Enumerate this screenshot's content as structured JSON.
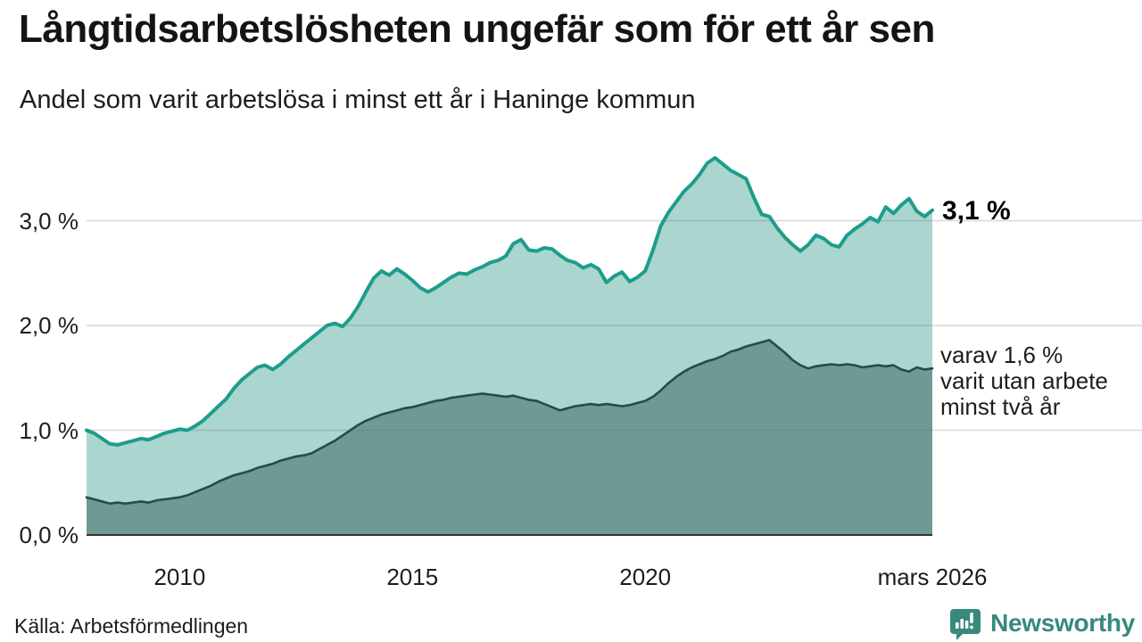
{
  "header": {
    "title": "Långtidsarbetslösheten ungefär som för ett år sen",
    "subtitle": "Andel som varit arbetslösa i minst ett år i Haninge kommun"
  },
  "chart_data": {
    "type": "area",
    "title": "Långtidsarbetslösheten ungefär som för ett år sen",
    "subtitle": "Andel som varit arbetslösa i minst ett år i Haninge kommun",
    "unit": "%",
    "x_start": 2008.0,
    "x_step_years": 0.16667,
    "x_end": 2026.167,
    "ylim": [
      0,
      3.75
    ],
    "grid": true,
    "legend_position": "none",
    "x_ticks": [
      {
        "label": "2010",
        "year": 2010
      },
      {
        "label": "2015",
        "year": 2015
      },
      {
        "label": "2020",
        "year": 2020
      },
      {
        "label": "mars 2026",
        "year": 2026.167
      }
    ],
    "y_ticks": [
      {
        "label": "0,0 %",
        "value": 0
      },
      {
        "label": "1,0 %",
        "value": 1
      },
      {
        "label": "2,0 %",
        "value": 2
      },
      {
        "label": "3,0 %",
        "value": 3
      }
    ],
    "series": [
      {
        "id": "minst-ett-ar",
        "name": "Andel som varit arbetslösa i minst ett år",
        "color": "#1d9d8c",
        "fill": "#abd5cf",
        "stroke_width": 4,
        "end_value_label": "3,1 %",
        "values": [
          1.0,
          0.97,
          0.92,
          0.87,
          0.86,
          0.88,
          0.9,
          0.92,
          0.91,
          0.94,
          0.97,
          0.99,
          1.01,
          1.0,
          1.04,
          1.09,
          1.16,
          1.23,
          1.3,
          1.4,
          1.48,
          1.54,
          1.6,
          1.62,
          1.58,
          1.63,
          1.7,
          1.76,
          1.82,
          1.88,
          1.94,
          2.0,
          2.02,
          1.99,
          2.07,
          2.18,
          2.32,
          2.45,
          2.52,
          2.48,
          2.54,
          2.49,
          2.43,
          2.36,
          2.32,
          2.36,
          2.41,
          2.46,
          2.5,
          2.49,
          2.53,
          2.56,
          2.6,
          2.62,
          2.66,
          2.78,
          2.82,
          2.72,
          2.71,
          2.74,
          2.73,
          2.67,
          2.62,
          2.6,
          2.55,
          2.58,
          2.54,
          2.41,
          2.47,
          2.51,
          2.42,
          2.46,
          2.52,
          2.72,
          2.95,
          3.08,
          3.18,
          3.28,
          3.35,
          3.44,
          3.55,
          3.6,
          3.54,
          3.48,
          3.44,
          3.4,
          3.22,
          3.06,
          3.04,
          2.93,
          2.84,
          2.77,
          2.71,
          2.77,
          2.86,
          2.83,
          2.77,
          2.75,
          2.86,
          2.92,
          2.97,
          3.03,
          2.99,
          3.13,
          3.07,
          3.15,
          3.21,
          3.09,
          3.04,
          3.1
        ]
      },
      {
        "id": "minst-tva-ar",
        "name": "varav utan arbete minst två år",
        "color": "#1e4f4a",
        "fill": "#6f9993",
        "stroke_width": 2.6,
        "end_value_label": "varav 1,6 %",
        "values": [
          0.36,
          0.34,
          0.32,
          0.3,
          0.31,
          0.3,
          0.31,
          0.32,
          0.31,
          0.33,
          0.34,
          0.35,
          0.36,
          0.38,
          0.41,
          0.44,
          0.47,
          0.51,
          0.54,
          0.57,
          0.59,
          0.61,
          0.64,
          0.66,
          0.68,
          0.71,
          0.73,
          0.75,
          0.76,
          0.78,
          0.82,
          0.86,
          0.9,
          0.95,
          1.0,
          1.05,
          1.09,
          1.12,
          1.15,
          1.17,
          1.19,
          1.21,
          1.22,
          1.24,
          1.26,
          1.28,
          1.29,
          1.31,
          1.32,
          1.33,
          1.34,
          1.35,
          1.34,
          1.33,
          1.32,
          1.33,
          1.31,
          1.29,
          1.28,
          1.25,
          1.22,
          1.19,
          1.21,
          1.23,
          1.24,
          1.25,
          1.24,
          1.25,
          1.24,
          1.23,
          1.24,
          1.26,
          1.28,
          1.32,
          1.38,
          1.45,
          1.51,
          1.56,
          1.6,
          1.63,
          1.66,
          1.68,
          1.71,
          1.75,
          1.77,
          1.8,
          1.82,
          1.84,
          1.86,
          1.8,
          1.74,
          1.67,
          1.62,
          1.59,
          1.61,
          1.62,
          1.63,
          1.62,
          1.63,
          1.62,
          1.6,
          1.61,
          1.62,
          1.61,
          1.62,
          1.58,
          1.56,
          1.6,
          1.58,
          1.59
        ]
      }
    ],
    "annotations": {
      "primary": "3,1 %",
      "secondary": [
        "varav 1,6 %",
        "varit utan arbete",
        "minst två år"
      ]
    },
    "colors": {
      "grid": "#d9d9d9",
      "baseline": "#333333",
      "background": "#ffffff"
    }
  },
  "footer": {
    "source": "Källa: Arbetsförmedlingen",
    "brand": "Newsworthy",
    "brand_color": "#37897b"
  }
}
